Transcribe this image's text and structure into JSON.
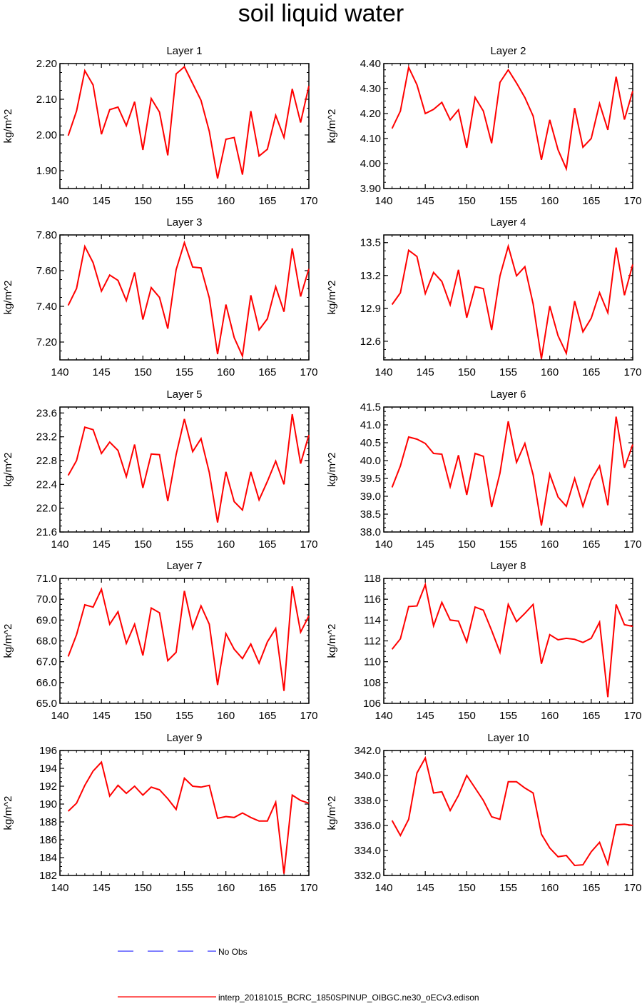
{
  "title": "soil liquid water",
  "legend": [
    {
      "label": "No Obs",
      "color": "#3333ff",
      "style": "dashed"
    },
    {
      "label": "interp_20181015_BCRC_1850SPINUP_OIBGC.ne30_oECv3.edison",
      "color": "#ff0000",
      "style": "solid"
    }
  ],
  "chart_data": [
    {
      "type": "line",
      "title": "Layer 1",
      "ylabel": "kg/m^2",
      "xlim": [
        140,
        170
      ],
      "ylim": [
        1.85,
        2.2
      ],
      "xticks": [
        "140",
        "145",
        "150",
        "155",
        "160",
        "165",
        "170"
      ],
      "yticks": [
        "1.90",
        "2.00",
        "2.10",
        "2.20"
      ],
      "x": [
        141,
        142,
        143,
        144,
        145,
        146,
        147,
        148,
        149,
        150,
        151,
        152,
        153,
        154,
        155,
        156,
        157,
        158,
        159,
        160,
        161,
        162,
        163,
        164,
        165,
        166,
        167,
        168,
        169,
        170
      ],
      "series": [
        {
          "name": "interp_20181015_BCRC_1850SPINUP_OIBGC.ne30_oECv3.edison",
          "values": [
            1.998,
            2.067,
            2.18,
            2.14,
            2.002,
            2.071,
            2.078,
            2.026,
            2.093,
            1.958,
            2.102,
            2.064,
            1.943,
            2.171,
            2.191,
            2.144,
            2.097,
            2.01,
            1.878,
            1.988,
            1.993,
            1.889,
            2.067,
            1.941,
            1.96,
            2.055,
            1.993,
            2.129,
            2.035,
            2.137
          ]
        }
      ]
    },
    {
      "type": "line",
      "title": "Layer 2",
      "ylabel": "kg/m^2",
      "xlim": [
        140,
        170
      ],
      "ylim": [
        3.9,
        4.4
      ],
      "xticks": [
        "140",
        "145",
        "150",
        "155",
        "160",
        "165",
        "170"
      ],
      "yticks": [
        "3.90",
        "4.00",
        "4.10",
        "4.20",
        "4.30",
        "4.40"
      ],
      "x": [
        141,
        142,
        143,
        144,
        145,
        146,
        147,
        148,
        149,
        150,
        151,
        152,
        153,
        154,
        155,
        156,
        157,
        158,
        159,
        160,
        161,
        162,
        163,
        164,
        165,
        166,
        167,
        168,
        169,
        170
      ],
      "series": [
        {
          "name": "interp_20181015_BCRC_1850SPINUP_OIBGC.ne30_oECv3.edison",
          "values": [
            4.14,
            4.21,
            4.385,
            4.315,
            4.2,
            4.217,
            4.245,
            4.175,
            4.215,
            4.063,
            4.265,
            4.21,
            4.081,
            4.325,
            4.375,
            4.322,
            4.264,
            4.19,
            4.015,
            4.175,
            4.055,
            3.979,
            4.222,
            4.065,
            4.1,
            4.24,
            4.135,
            4.347,
            4.176,
            4.29
          ]
        }
      ]
    },
    {
      "type": "line",
      "title": "Layer 3",
      "ylabel": "kg/m^2",
      "xlim": [
        140,
        170
      ],
      "ylim": [
        7.1,
        7.8
      ],
      "xticks": [
        "140",
        "145",
        "150",
        "155",
        "160",
        "165",
        "170"
      ],
      "yticks": [
        "7.20",
        "7.40",
        "7.60",
        "7.80"
      ],
      "x": [
        141,
        142,
        143,
        144,
        145,
        146,
        147,
        148,
        149,
        150,
        151,
        152,
        153,
        154,
        155,
        156,
        157,
        158,
        159,
        160,
        161,
        162,
        163,
        164,
        165,
        166,
        167,
        168,
        169,
        170
      ],
      "series": [
        {
          "name": "interp_20181015_BCRC_1850SPINUP_OIBGC.ne30_oECv3.edison",
          "values": [
            7.405,
            7.5,
            7.735,
            7.645,
            7.485,
            7.575,
            7.545,
            7.432,
            7.59,
            7.326,
            7.505,
            7.45,
            7.275,
            7.605,
            7.757,
            7.62,
            7.615,
            7.447,
            7.132,
            7.41,
            7.225,
            7.121,
            7.462,
            7.268,
            7.33,
            7.51,
            7.37,
            7.725,
            7.455,
            7.61
          ]
        }
      ]
    },
    {
      "type": "line",
      "title": "Layer 4",
      "ylabel": "kg/m^2",
      "xlim": [
        140,
        170
      ],
      "ylim": [
        12.43,
        13.57
      ],
      "xticks": [
        "140",
        "145",
        "150",
        "155",
        "160",
        "165",
        "170"
      ],
      "yticks": [
        "12.6",
        "12.9",
        "13.2",
        "13.5"
      ],
      "x": [
        141,
        142,
        143,
        144,
        145,
        146,
        147,
        148,
        149,
        150,
        151,
        152,
        153,
        154,
        155,
        156,
        157,
        158,
        159,
        160,
        161,
        162,
        163,
        164,
        165,
        166,
        167,
        168,
        169,
        170
      ],
      "series": [
        {
          "name": "interp_20181015_BCRC_1850SPINUP_OIBGC.ne30_oECv3.edison",
          "values": [
            12.935,
            13.042,
            13.43,
            13.373,
            13.035,
            13.228,
            13.145,
            12.933,
            13.252,
            12.815,
            13.098,
            13.08,
            12.703,
            13.196,
            13.467,
            13.197,
            13.28,
            12.94,
            12.44,
            12.921,
            12.65,
            12.49,
            12.967,
            12.686,
            12.81,
            13.043,
            12.86,
            13.455,
            13.02,
            13.3
          ]
        }
      ]
    },
    {
      "type": "line",
      "title": "Layer 5",
      "ylabel": "kg/m^2",
      "xlim": [
        140,
        170
      ],
      "ylim": [
        21.6,
        23.7
      ],
      "xticks": [
        "140",
        "145",
        "150",
        "155",
        "160",
        "165",
        "170"
      ],
      "yticks": [
        "21.6",
        "22.0",
        "22.4",
        "22.8",
        "23.2",
        "23.6"
      ],
      "x": [
        141,
        142,
        143,
        144,
        145,
        146,
        147,
        148,
        149,
        150,
        151,
        152,
        153,
        154,
        155,
        156,
        157,
        158,
        159,
        160,
        161,
        162,
        163,
        164,
        165,
        166,
        167,
        168,
        169,
        170
      ],
      "series": [
        {
          "name": "interp_20181015_BCRC_1850SPINUP_OIBGC.ne30_oECv3.edison",
          "values": [
            22.55,
            22.8,
            23.36,
            23.32,
            22.92,
            23.11,
            22.97,
            22.53,
            23.07,
            22.34,
            22.91,
            22.9,
            22.12,
            22.9,
            23.5,
            22.95,
            23.17,
            22.6,
            21.76,
            22.61,
            22.11,
            21.97,
            22.61,
            22.14,
            22.45,
            22.79,
            22.4,
            23.58,
            22.75,
            23.23
          ]
        }
      ]
    },
    {
      "type": "line",
      "title": "Layer 6",
      "ylabel": "kg/m^2",
      "xlim": [
        140,
        170
      ],
      "ylim": [
        38.0,
        41.5
      ],
      "xticks": [
        "140",
        "145",
        "150",
        "155",
        "160",
        "165",
        "170"
      ],
      "yticks": [
        "38.0",
        "38.5",
        "39.0",
        "39.5",
        "40.0",
        "40.5",
        "41.0",
        "41.5"
      ],
      "x": [
        141,
        142,
        143,
        144,
        145,
        146,
        147,
        148,
        149,
        150,
        151,
        152,
        153,
        154,
        155,
        156,
        157,
        158,
        159,
        160,
        161,
        162,
        163,
        164,
        165,
        166,
        167,
        168,
        169,
        170
      ],
      "series": [
        {
          "name": "interp_20181015_BCRC_1850SPINUP_OIBGC.ne30_oECv3.edison",
          "values": [
            39.25,
            39.85,
            40.66,
            40.6,
            40.48,
            40.2,
            40.18,
            39.27,
            40.15,
            39.04,
            40.2,
            40.12,
            38.7,
            39.65,
            41.1,
            39.95,
            40.48,
            39.6,
            38.18,
            39.62,
            38.98,
            38.72,
            39.5,
            38.72,
            39.45,
            39.85,
            38.75,
            41.23,
            39.8,
            40.45
          ]
        }
      ]
    },
    {
      "type": "line",
      "title": "Layer 7",
      "ylabel": "kg/m^2",
      "xlim": [
        140,
        170
      ],
      "ylim": [
        65.0,
        71.0
      ],
      "xticks": [
        "140",
        "145",
        "150",
        "155",
        "160",
        "165",
        "170"
      ],
      "yticks": [
        "65.0",
        "66.0",
        "67.0",
        "68.0",
        "69.0",
        "70.0",
        "71.0"
      ],
      "x": [
        141,
        142,
        143,
        144,
        145,
        146,
        147,
        148,
        149,
        150,
        151,
        152,
        153,
        154,
        155,
        156,
        157,
        158,
        159,
        160,
        161,
        162,
        163,
        164,
        165,
        166,
        167,
        168,
        169,
        170
      ],
      "series": [
        {
          "name": "interp_20181015_BCRC_1850SPINUP_OIBGC.ne30_oECv3.edison",
          "values": [
            67.25,
            68.3,
            69.73,
            69.62,
            70.48,
            68.8,
            69.4,
            67.88,
            68.8,
            67.3,
            69.58,
            69.35,
            67.05,
            67.45,
            70.4,
            68.6,
            69.68,
            68.8,
            65.88,
            68.35,
            67.6,
            67.15,
            67.85,
            66.93,
            67.95,
            68.6,
            65.6,
            70.62,
            68.42,
            69.2
          ]
        }
      ]
    },
    {
      "type": "line",
      "title": "Layer 8",
      "ylabel": "kg/m^2",
      "xlim": [
        140,
        170
      ],
      "ylim": [
        106,
        118
      ],
      "xticks": [
        "140",
        "145",
        "150",
        "155",
        "160",
        "165",
        "170"
      ],
      "yticks": [
        "106",
        "108",
        "110",
        "112",
        "114",
        "116",
        "118"
      ],
      "x": [
        141,
        142,
        143,
        144,
        145,
        146,
        147,
        148,
        149,
        150,
        151,
        152,
        153,
        154,
        155,
        156,
        157,
        158,
        159,
        160,
        161,
        162,
        163,
        164,
        165,
        166,
        167,
        168,
        169,
        170
      ],
      "series": [
        {
          "name": "interp_20181015_BCRC_1850SPINUP_OIBGC.ne30_oECv3.edison",
          "values": [
            111.2,
            112.2,
            115.3,
            115.35,
            117.4,
            113.45,
            115.7,
            114.0,
            113.9,
            111.9,
            115.25,
            114.95,
            113.0,
            110.9,
            115.5,
            113.85,
            114.65,
            115.5,
            109.8,
            112.6,
            112.1,
            112.25,
            112.15,
            111.85,
            112.25,
            113.8,
            106.6,
            115.5,
            113.55,
            113.4
          ]
        }
      ]
    },
    {
      "type": "line",
      "title": "Layer 9",
      "ylabel": "kg/m^2",
      "xlim": [
        140,
        170
      ],
      "ylim": [
        182,
        196
      ],
      "xticks": [
        "140",
        "145",
        "150",
        "155",
        "160",
        "165",
        "170"
      ],
      "yticks": [
        "182",
        "184",
        "186",
        "188",
        "190",
        "192",
        "194",
        "196"
      ],
      "x": [
        141,
        142,
        143,
        144,
        145,
        146,
        147,
        148,
        149,
        150,
        151,
        152,
        153,
        154,
        155,
        156,
        157,
        158,
        159,
        160,
        161,
        162,
        163,
        164,
        165,
        166,
        167,
        168,
        169,
        170
      ],
      "series": [
        {
          "name": "interp_20181015_BCRC_1850SPINUP_OIBGC.ne30_oECv3.edison",
          "values": [
            189.2,
            190.1,
            192.1,
            193.7,
            194.7,
            190.9,
            192.1,
            191.2,
            192.0,
            191.0,
            191.9,
            191.6,
            190.6,
            189.4,
            192.9,
            192.0,
            191.9,
            192.1,
            188.4,
            188.6,
            188.5,
            189.0,
            188.5,
            188.1,
            188.1,
            190.2,
            182.2,
            191.0,
            190.4,
            190.1
          ]
        }
      ]
    },
    {
      "type": "line",
      "title": "Layer 10",
      "ylabel": "kg/m^2",
      "xlim": [
        140,
        170
      ],
      "ylim": [
        332.0,
        342.0
      ],
      "xticks": [
        "140",
        "145",
        "150",
        "155",
        "160",
        "165",
        "170"
      ],
      "yticks": [
        "332.0",
        "334.0",
        "336.0",
        "338.0",
        "340.0",
        "342.0"
      ],
      "x": [
        141,
        142,
        143,
        144,
        145,
        146,
        147,
        148,
        149,
        150,
        151,
        152,
        153,
        154,
        155,
        156,
        157,
        158,
        159,
        160,
        161,
        162,
        163,
        164,
        165,
        166,
        167,
        168,
        169,
        170
      ],
      "series": [
        {
          "name": "interp_20181015_BCRC_1850SPINUP_OIBGC.ne30_oECv3.edison",
          "values": [
            336.4,
            335.2,
            336.5,
            340.2,
            341.4,
            338.6,
            338.7,
            337.2,
            338.4,
            340.0,
            339.0,
            338.0,
            336.7,
            336.5,
            339.5,
            339.5,
            339.0,
            338.6,
            335.3,
            334.2,
            333.5,
            333.6,
            332.8,
            332.85,
            333.9,
            334.65,
            332.9,
            336.05,
            336.1,
            336.0
          ]
        }
      ]
    }
  ]
}
